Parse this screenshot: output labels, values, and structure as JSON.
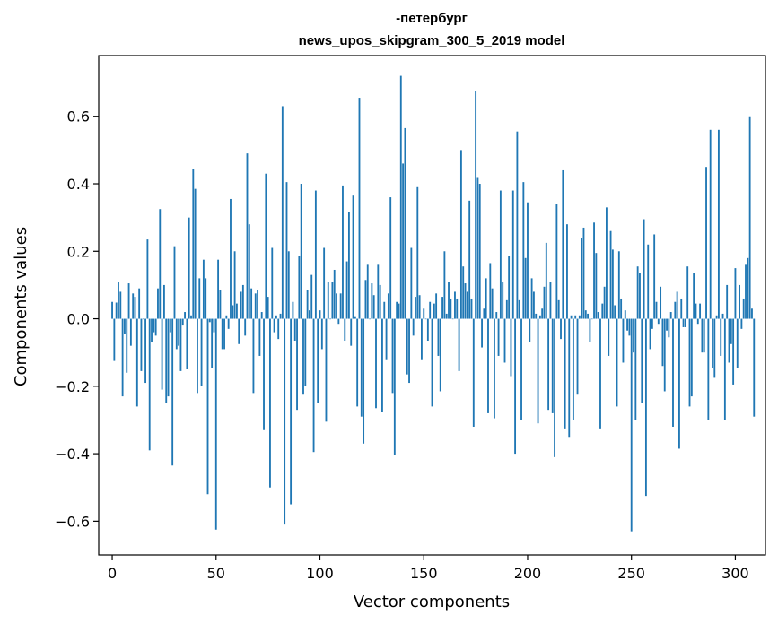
{
  "chart_data": {
    "type": "bar",
    "title_line1": "-петербург",
    "title_line2": "news_upos_skipgram_300_5_2019 model",
    "xlabel": "Vector components",
    "ylabel": "Components values",
    "xlim": [
      -6.5,
      314.5
    ],
    "ylim": [
      -0.7,
      0.78
    ],
    "xticks": [
      0,
      50,
      100,
      150,
      200,
      250,
      300
    ],
    "xtick_labels": [
      "0",
      "50",
      "100",
      "150",
      "200",
      "250",
      "300"
    ],
    "yticks": [
      -0.6,
      -0.4,
      -0.2,
      0.0,
      0.2,
      0.4,
      0.6
    ],
    "ytick_labels": [
      "−0.6",
      "−0.4",
      "−0.2",
      "0.0",
      "0.2",
      "0.4",
      "0.6"
    ],
    "bar_color": "#1f77b4",
    "grid": false,
    "values": [
      0.05,
      -0.125,
      0.048,
      0.11,
      0.08,
      -0.23,
      -0.045,
      -0.16,
      0.105,
      -0.08,
      0.075,
      0.065,
      -0.26,
      0.09,
      -0.155,
      0.0,
      -0.19,
      0.235,
      -0.39,
      -0.07,
      -0.04,
      -0.05,
      0.09,
      0.325,
      -0.21,
      0.1,
      -0.25,
      -0.23,
      -0.04,
      -0.435,
      0.215,
      -0.09,
      -0.08,
      -0.155,
      -0.02,
      0.02,
      -0.15,
      0.3,
      0.01,
      0.445,
      0.385,
      -0.22,
      0.12,
      -0.2,
      0.175,
      0.12,
      -0.52,
      -0.01,
      -0.145,
      -0.04,
      -0.625,
      0.175,
      0.085,
      -0.09,
      -0.09,
      0.01,
      -0.03,
      0.355,
      0.04,
      0.2,
      0.045,
      -0.075,
      0.08,
      0.1,
      -0.05,
      0.49,
      0.28,
      0.09,
      -0.22,
      0.075,
      0.085,
      -0.11,
      0.02,
      -0.33,
      0.43,
      0.065,
      -0.5,
      0.21,
      -0.04,
      0.01,
      -0.06,
      0.015,
      0.63,
      -0.61,
      0.405,
      0.2,
      -0.55,
      0.05,
      -0.065,
      -0.27,
      0.185,
      0.4,
      -0.225,
      -0.2,
      0.085,
      0.025,
      0.13,
      -0.395,
      0.38,
      -0.25,
      0.025,
      -0.09,
      0.21,
      -0.305,
      0.11,
      0.0,
      0.11,
      0.145,
      0.075,
      -0.015,
      0.075,
      0.395,
      -0.065,
      0.17,
      0.315,
      -0.08,
      0.365,
      0.005,
      -0.26,
      0.655,
      -0.29,
      -0.37,
      0.115,
      0.16,
      0.0,
      0.105,
      0.07,
      -0.265,
      0.16,
      0.1,
      -0.275,
      0.05,
      -0.12,
      0.075,
      0.36,
      -0.22,
      -0.405,
      0.05,
      0.045,
      0.72,
      0.46,
      0.565,
      -0.165,
      -0.19,
      0.21,
      -0.05,
      0.065,
      0.39,
      0.07,
      -0.12,
      0.03,
      0.0,
      -0.065,
      0.05,
      -0.26,
      0.045,
      0.075,
      -0.11,
      -0.215,
      0.065,
      0.2,
      0.015,
      0.11,
      0.06,
      0.0,
      0.08,
      0.06,
      -0.155,
      0.5,
      0.155,
      0.105,
      0.08,
      0.35,
      0.06,
      -0.32,
      0.675,
      0.42,
      0.4,
      -0.085,
      0.03,
      0.12,
      -0.28,
      0.165,
      0.09,
      -0.295,
      0.02,
      -0.11,
      0.38,
      0.11,
      -0.13,
      0.055,
      0.185,
      -0.17,
      0.38,
      -0.4,
      0.555,
      0.055,
      -0.3,
      0.405,
      0.18,
      0.345,
      -0.07,
      0.12,
      0.08,
      0.015,
      -0.31,
      0.01,
      0.03,
      0.095,
      0.225,
      -0.27,
      0.11,
      -0.28,
      -0.41,
      0.34,
      0.055,
      -0.06,
      0.44,
      -0.325,
      0.28,
      -0.35,
      0.01,
      -0.3,
      0.01,
      -0.225,
      0.01,
      0.24,
      0.27,
      0.025,
      0.015,
      -0.07,
      0.0,
      0.285,
      0.195,
      0.02,
      -0.325,
      0.045,
      0.095,
      0.33,
      -0.11,
      0.26,
      0.205,
      0.04,
      -0.26,
      0.2,
      0.06,
      -0.13,
      0.025,
      -0.035,
      -0.05,
      -0.63,
      -0.1,
      -0.3,
      0.155,
      0.135,
      -0.25,
      0.295,
      -0.525,
      0.22,
      -0.09,
      -0.03,
      0.25,
      0.05,
      -0.015,
      0.095,
      -0.14,
      -0.215,
      -0.035,
      -0.055,
      0.02,
      -0.32,
      0.05,
      0.08,
      -0.385,
      0.06,
      -0.025,
      -0.025,
      0.155,
      -0.26,
      -0.23,
      0.135,
      0.045,
      -0.015,
      0.045,
      -0.1,
      -0.1,
      0.45,
      -0.3,
      0.56,
      -0.145,
      -0.175,
      0.01,
      0.56,
      -0.11,
      0.015,
      -0.3,
      0.1,
      -0.13,
      -0.075,
      -0.195,
      0.15,
      -0.145,
      0.1,
      -0.03,
      0.06,
      0.16,
      0.18,
      0.6,
      0.03,
      -0.29
    ]
  }
}
